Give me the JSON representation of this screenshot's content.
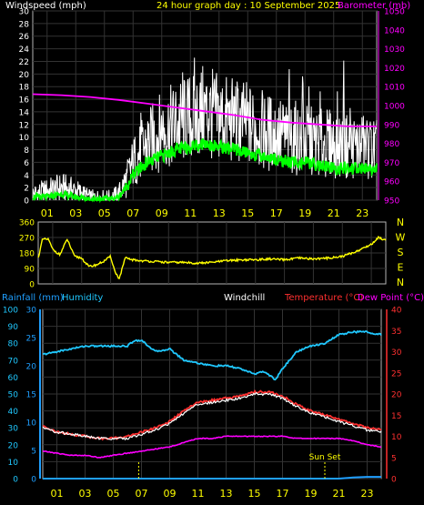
{
  "colors": {
    "background": "#000000",
    "frame": "#b4b4b4",
    "grid": "#333333",
    "label": "#ffffff",
    "hour": "#ffff00",
    "wind": "#ffffff",
    "gust": "#00ff00",
    "barometer": "#ff00ff",
    "direction": "#ffff00",
    "rain": "#1f9fff",
    "humidity": "#20c8ff",
    "windchill": "#ffffff",
    "temperature": "#ff3030",
    "dewpoint": "#ff00ff"
  },
  "header": {
    "wind_title": "Windspeed (mph)",
    "graph_title": "24 hour graph day : 10 September 2025",
    "baro_title": "Barometer (mb)"
  },
  "bottom_header": {
    "rain_title": "Rainfall (mm)",
    "humidity_title": "Humidity",
    "windchill_title": "Windchill",
    "temperature_title": "Temperature (°C)",
    "dewpoint_title": "Dew Point (°C)"
  },
  "hour_labels": [
    "01",
    "03",
    "05",
    "07",
    "09",
    "11",
    "13",
    "15",
    "17",
    "19",
    "21",
    "23"
  ],
  "compass": [
    "N",
    "W",
    "S",
    "E",
    "N"
  ],
  "annotation": {
    "sunset": "Sun Set"
  },
  "chart_data": [
    {
      "type": "line",
      "title": "24 hour graph day : 10 September 2025",
      "xlabel": "hour",
      "x_ticks": [
        "01",
        "03",
        "05",
        "07",
        "09",
        "11",
        "13",
        "15",
        "17",
        "19",
        "21",
        "23"
      ],
      "y_left": {
        "label": "Windspeed (mph)",
        "ylim": [
          0,
          30
        ],
        "ticks": [
          0,
          2,
          4,
          6,
          8,
          10,
          12,
          14,
          16,
          18,
          20,
          22,
          24,
          26,
          28,
          30
        ]
      },
      "y_right": {
        "label": "Barometer (mb)",
        "ylim": [
          950,
          1050
        ],
        "ticks": [
          950,
          960,
          970,
          980,
          990,
          1000,
          1010,
          1020,
          1030,
          1040,
          1050
        ]
      },
      "series": [
        {
          "name": "Windspeed",
          "axis": "left",
          "x": [
            0,
            1,
            2,
            3,
            4,
            5,
            5.5,
            6,
            6.5,
            7,
            8,
            9,
            10,
            11,
            12,
            13,
            14,
            15,
            16,
            17,
            18,
            19,
            20,
            21,
            22,
            23,
            24
          ],
          "y": [
            1,
            1.5,
            2,
            1.5,
            0.5,
            0.5,
            0.5,
            1,
            3,
            6,
            9,
            11,
            12,
            13,
            14,
            13,
            12.5,
            12,
            11,
            10.5,
            10,
            9.5,
            9,
            9,
            8.5,
            8.5,
            8
          ]
        },
        {
          "name": "Gust",
          "axis": "left",
          "x": [
            0,
            1,
            2,
            3,
            4,
            5,
            5.5,
            6,
            6.5,
            7,
            8,
            9,
            10,
            11,
            12,
            13,
            14,
            15,
            16,
            17,
            18,
            19,
            20,
            21,
            22,
            23,
            24
          ],
          "y": [
            0.5,
            0.5,
            1,
            0.5,
            0.2,
            0.2,
            0.2,
            0.5,
            2,
            4,
            6,
            7,
            8,
            8.5,
            9,
            8.5,
            8,
            7.5,
            7,
            6.5,
            6,
            6,
            5.5,
            5,
            5,
            5,
            5
          ]
        },
        {
          "name": "Barometer",
          "axis": "right",
          "x": [
            0,
            2,
            4,
            6,
            8,
            10,
            12,
            14,
            16,
            18,
            20,
            22,
            24
          ],
          "y": [
            1006,
            1005.5,
            1004.5,
            1003,
            1001,
            999,
            997,
            995,
            992.5,
            991,
            990,
            989,
            989
          ]
        }
      ]
    },
    {
      "type": "line",
      "title": "",
      "x_ticks": [
        "01",
        "03",
        "05",
        "07",
        "09",
        "11",
        "13",
        "15",
        "17",
        "19",
        "21",
        "23"
      ],
      "y_left": {
        "ylim": [
          0,
          360
        ],
        "ticks": [
          0,
          90,
          180,
          270,
          360
        ]
      },
      "y_right_labels": [
        "N",
        "W",
        "S",
        "E",
        "N"
      ],
      "series": [
        {
          "name": "Wind Direction",
          "x": [
            0,
            0.3,
            0.7,
            1,
            1.5,
            2,
            2.5,
            3,
            3.5,
            4,
            4.5,
            5,
            5.3,
            5.6,
            6,
            6.5,
            7,
            8,
            9,
            10,
            11,
            12,
            13,
            14,
            15,
            16,
            17,
            18,
            19,
            20,
            21,
            22,
            23,
            23.5,
            24
          ],
          "y": [
            150,
            260,
            260,
            200,
            170,
            260,
            160,
            150,
            100,
            110,
            130,
            160,
            70,
            30,
            150,
            140,
            135,
            130,
            125,
            125,
            120,
            125,
            135,
            140,
            140,
            145,
            140,
            150,
            145,
            150,
            160,
            190,
            230,
            270,
            255
          ]
        }
      ]
    },
    {
      "type": "line",
      "x_ticks": [
        "01",
        "03",
        "05",
        "07",
        "09",
        "11",
        "13",
        "15",
        "17",
        "19",
        "21",
        "23"
      ],
      "y_left_humidity": {
        "label": "Humidity",
        "ylim": [
          0,
          100
        ],
        "ticks": [
          0,
          10,
          20,
          30,
          40,
          50,
          60,
          70,
          80,
          90,
          100
        ]
      },
      "y_left_rain": {
        "label": "Rainfall (mm)",
        "ylim": [
          0,
          30
        ],
        "ticks": [
          0,
          5,
          10,
          15,
          20,
          25,
          30
        ]
      },
      "y_right": {
        "label": "Temperature (°C)",
        "ylim": [
          0,
          40
        ],
        "ticks": [
          0,
          5,
          10,
          15,
          20,
          25,
          30,
          35,
          40
        ]
      },
      "annotations": [
        {
          "text": "Sun Set",
          "x": 20
        }
      ],
      "series": [
        {
          "name": "Humidity",
          "axis": "rain",
          "x": [
            0,
            1,
            2,
            3,
            4,
            5,
            6,
            6.5,
            7,
            7.5,
            8,
            9,
            10,
            11,
            12,
            13,
            14,
            15,
            15.5,
            16,
            16.5,
            17,
            18,
            19,
            20,
            21,
            22,
            23,
            24
          ],
          "y": [
            22,
            22.5,
            23,
            23.5,
            23.5,
            23.5,
            23.5,
            24.5,
            24.5,
            23.5,
            22.5,
            23,
            21,
            20.5,
            20,
            20,
            19.5,
            18.5,
            19,
            18.5,
            17.5,
            19.5,
            22.5,
            23.5,
            24,
            25.5,
            26,
            26,
            25.5
          ]
        },
        {
          "name": "Temperature",
          "axis": "right",
          "x": [
            0,
            1,
            2,
            3,
            4,
            5,
            6,
            7,
            8,
            9,
            10,
            11,
            12,
            13,
            14,
            15,
            16,
            17,
            18,
            19,
            20,
            21,
            22,
            23,
            24
          ],
          "y": [
            12.5,
            11,
            10.5,
            10,
            9.5,
            9.5,
            10,
            11,
            12,
            13.5,
            16,
            18,
            18.5,
            19,
            19.5,
            20.5,
            20.5,
            19.5,
            17.5,
            16,
            15,
            14,
            13,
            12,
            11.5
          ]
        },
        {
          "name": "Windchill",
          "axis": "right",
          "x": [
            0,
            1,
            2,
            3,
            4,
            5,
            6,
            7,
            8,
            9,
            10,
            11,
            12,
            13,
            14,
            15,
            16,
            17,
            18,
            19,
            20,
            21,
            22,
            23,
            24
          ],
          "y": [
            12,
            11,
            10.5,
            10,
            9.5,
            9.5,
            9.5,
            10.5,
            11.5,
            13,
            15.5,
            17.5,
            18,
            18.5,
            19,
            20,
            20,
            19,
            17,
            15.5,
            14.5,
            13.5,
            12.5,
            11.5,
            11
          ]
        },
        {
          "name": "Dew Point",
          "axis": "right",
          "x": [
            0,
            1,
            2,
            3,
            4,
            5,
            6,
            7,
            8,
            9,
            10,
            11,
            12,
            13,
            14,
            15,
            16,
            17,
            18,
            19,
            20,
            21,
            22,
            23,
            24
          ],
          "y": [
            6.5,
            6,
            5.5,
            5.5,
            5,
            5.5,
            6,
            6.5,
            7,
            7.5,
            8.5,
            9.5,
            9.5,
            10,
            10,
            10,
            10,
            10,
            9.5,
            9.5,
            9.5,
            9.5,
            9,
            8,
            7.5
          ]
        },
        {
          "name": "Rainfall",
          "axis": "rain",
          "x": [
            0,
            21,
            22,
            23,
            24
          ],
          "y": [
            0,
            0,
            0.2,
            0.3,
            0.3
          ]
        }
      ]
    }
  ]
}
